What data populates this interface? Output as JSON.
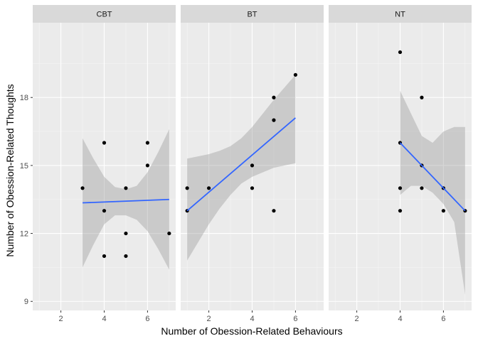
{
  "chart_data": {
    "type": "scatter",
    "facets": [
      {
        "label": "CBT",
        "points": [
          [
            3,
            14
          ],
          [
            4,
            16
          ],
          [
            4,
            13
          ],
          [
            4,
            11
          ],
          [
            5,
            14
          ],
          [
            5,
            12
          ],
          [
            5,
            11
          ],
          [
            6,
            16
          ],
          [
            6,
            15
          ],
          [
            7,
            12
          ]
        ],
        "fit": {
          "x": [
            3,
            7
          ],
          "y": [
            13.35,
            13.5
          ]
        },
        "band": {
          "x": [
            3,
            3.5,
            4,
            4.5,
            5,
            5.5,
            6,
            6.5,
            7
          ],
          "lower": [
            10.5,
            11.5,
            12.4,
            12.8,
            12.8,
            12.6,
            12.1,
            11.3,
            10.4
          ],
          "upper": [
            16.2,
            15.3,
            14.5,
            14.05,
            13.95,
            14.1,
            14.7,
            15.6,
            16.6
          ]
        }
      },
      {
        "label": "BT",
        "points": [
          [
            1,
            14
          ],
          [
            1,
            13
          ],
          [
            2,
            14
          ],
          [
            4,
            15
          ],
          [
            4,
            14
          ],
          [
            5,
            18
          ],
          [
            5,
            17
          ],
          [
            5,
            13
          ],
          [
            6,
            19
          ]
        ],
        "fit": {
          "x": [
            1,
            6
          ],
          "y": [
            13.0,
            17.1
          ]
        },
        "band": {
          "x": [
            1,
            1.5,
            2,
            2.5,
            3,
            3.5,
            4,
            4.5,
            5,
            5.5,
            6
          ],
          "lower": [
            10.8,
            11.6,
            12.4,
            13.1,
            13.7,
            14.2,
            14.5,
            14.7,
            14.9,
            15.0,
            15.1
          ],
          "upper": [
            15.3,
            15.4,
            15.5,
            15.65,
            15.85,
            16.2,
            16.7,
            17.3,
            17.9,
            18.45,
            19.0
          ]
        }
      },
      {
        "label": "NT",
        "points": [
          [
            4,
            20
          ],
          [
            4,
            16
          ],
          [
            4,
            14
          ],
          [
            4,
            13
          ],
          [
            5,
            18
          ],
          [
            5,
            15
          ],
          [
            5,
            14
          ],
          [
            6,
            14
          ],
          [
            6,
            13
          ],
          [
            7,
            13
          ]
        ],
        "fit": {
          "x": [
            4,
            7
          ],
          "y": [
            16.0,
            13.0
          ]
        },
        "band": {
          "x": [
            4,
            4.5,
            5,
            5.5,
            6,
            6.5,
            7
          ],
          "lower": [
            13.7,
            14.1,
            14.1,
            13.8,
            13.3,
            12.5,
            9.3
          ],
          "upper": [
            18.3,
            17.3,
            16.3,
            16.0,
            16.5,
            16.7,
            16.7
          ]
        }
      }
    ],
    "xlabel": "Number of Obession-Related Behaviours",
    "ylabel": "Number of Obession-Related Thoughts",
    "xlim": [
      0.7,
      7.3
    ],
    "ylim": [
      8.6,
      21.3
    ],
    "xticks": [
      2,
      4,
      6
    ],
    "yticks": [
      9,
      12,
      15,
      18
    ],
    "grid": true,
    "colors": {
      "panel_bg": "#ebebeb",
      "strip_bg": "#d9d9d9",
      "grid_major": "#ffffff",
      "point": "#000000",
      "fit_line": "#3366ff",
      "band": "#999999"
    }
  }
}
